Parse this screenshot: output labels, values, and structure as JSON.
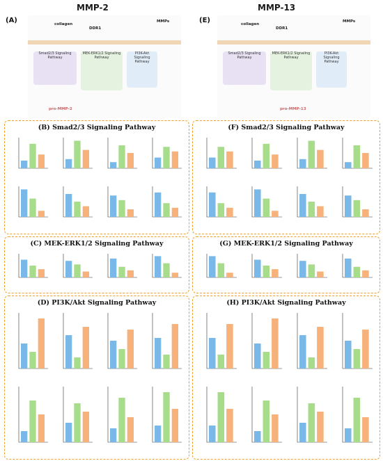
{
  "headers": {
    "left": "MMP-2",
    "right": "MMP-13"
  },
  "panels": {
    "a": "(A)",
    "e": "(E)"
  },
  "diagram_labels": {
    "collagen": "collagen",
    "ddr1": "DDR1",
    "mmps": "MMPs",
    "smad": "Smad2/3\nSignaling Pathway",
    "mek": "MEK-ERK1/2\nSignaling Pathway",
    "pi3k": "PI3K-Akt\nSignaling Pathway",
    "pro_mmp2": "pro-MMP-2",
    "pro_mmp13": "pro-MMP-13"
  },
  "sections": [
    {
      "id": "B",
      "title": "(B) Smad2/3 Signaling Pathway"
    },
    {
      "id": "C",
      "title": "(C) MEK-ERK1/2 Signaling Pathway"
    },
    {
      "id": "D",
      "title": "(D) PI3K/Akt Signaling Pathway"
    },
    {
      "id": "F",
      "title": "(F) Smad2/3 Signaling Pathway"
    },
    {
      "id": "G",
      "title": "(G) MEK-ERK1/2 Signaling Pathway"
    },
    {
      "id": "H",
      "title": "(H) PI3K/Akt Signaling Pathway"
    }
  ],
  "colors": {
    "blue": "#7ab8e8",
    "green": "#a7dd8a",
    "orange": "#f6b27a",
    "border": "#f0a12a"
  }
}
